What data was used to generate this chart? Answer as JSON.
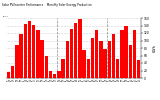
{
  "title": "Solar PV/Inverter Performance    Monthly Solar Energy Production",
  "ylabel": "kWh",
  "bar_color": "#ff0000",
  "background_color": "#ffffff",
  "grid_color": "#aaaaaa",
  "categories": [
    "Jan\n2007",
    "Feb\n2007",
    "Mar\n2007",
    "Apr\n2007",
    "May\n2007",
    "Jun\n2007",
    "Jul\n2007",
    "Aug\n2007",
    "Sep\n2007",
    "Oct\n2007",
    "Nov\n2007",
    "Dec\n2007",
    "Jan\n2008",
    "Feb\n2008",
    "Mar\n2008",
    "Apr\n2008",
    "May\n2008",
    "Jun\n2008",
    "Jul\n2008",
    "Aug\n2008",
    "Sep\n2008",
    "Oct\n2008",
    "Nov\n2008",
    "Dec\n2008",
    "Jan\n2009",
    "Feb\n2009",
    "Mar\n2009",
    "Apr\n2009",
    "May\n2009",
    "Jun\n2009",
    "Jul\n2009",
    "Aug\n2009"
  ],
  "values": [
    15,
    32,
    88,
    118,
    145,
    152,
    142,
    128,
    102,
    58,
    20,
    10,
    18,
    52,
    98,
    132,
    148,
    158,
    75,
    52,
    108,
    128,
    100,
    78,
    98,
    118,
    52,
    128,
    138,
    88,
    128,
    48
  ],
  "ylim": [
    0,
    160
  ],
  "yticks": [
    0,
    20,
    40,
    60,
    80,
    100,
    120,
    140,
    160
  ],
  "yticklabels": [
    "0",
    "20",
    "40",
    "60",
    "80",
    "100",
    "120",
    "140",
    "160"
  ]
}
